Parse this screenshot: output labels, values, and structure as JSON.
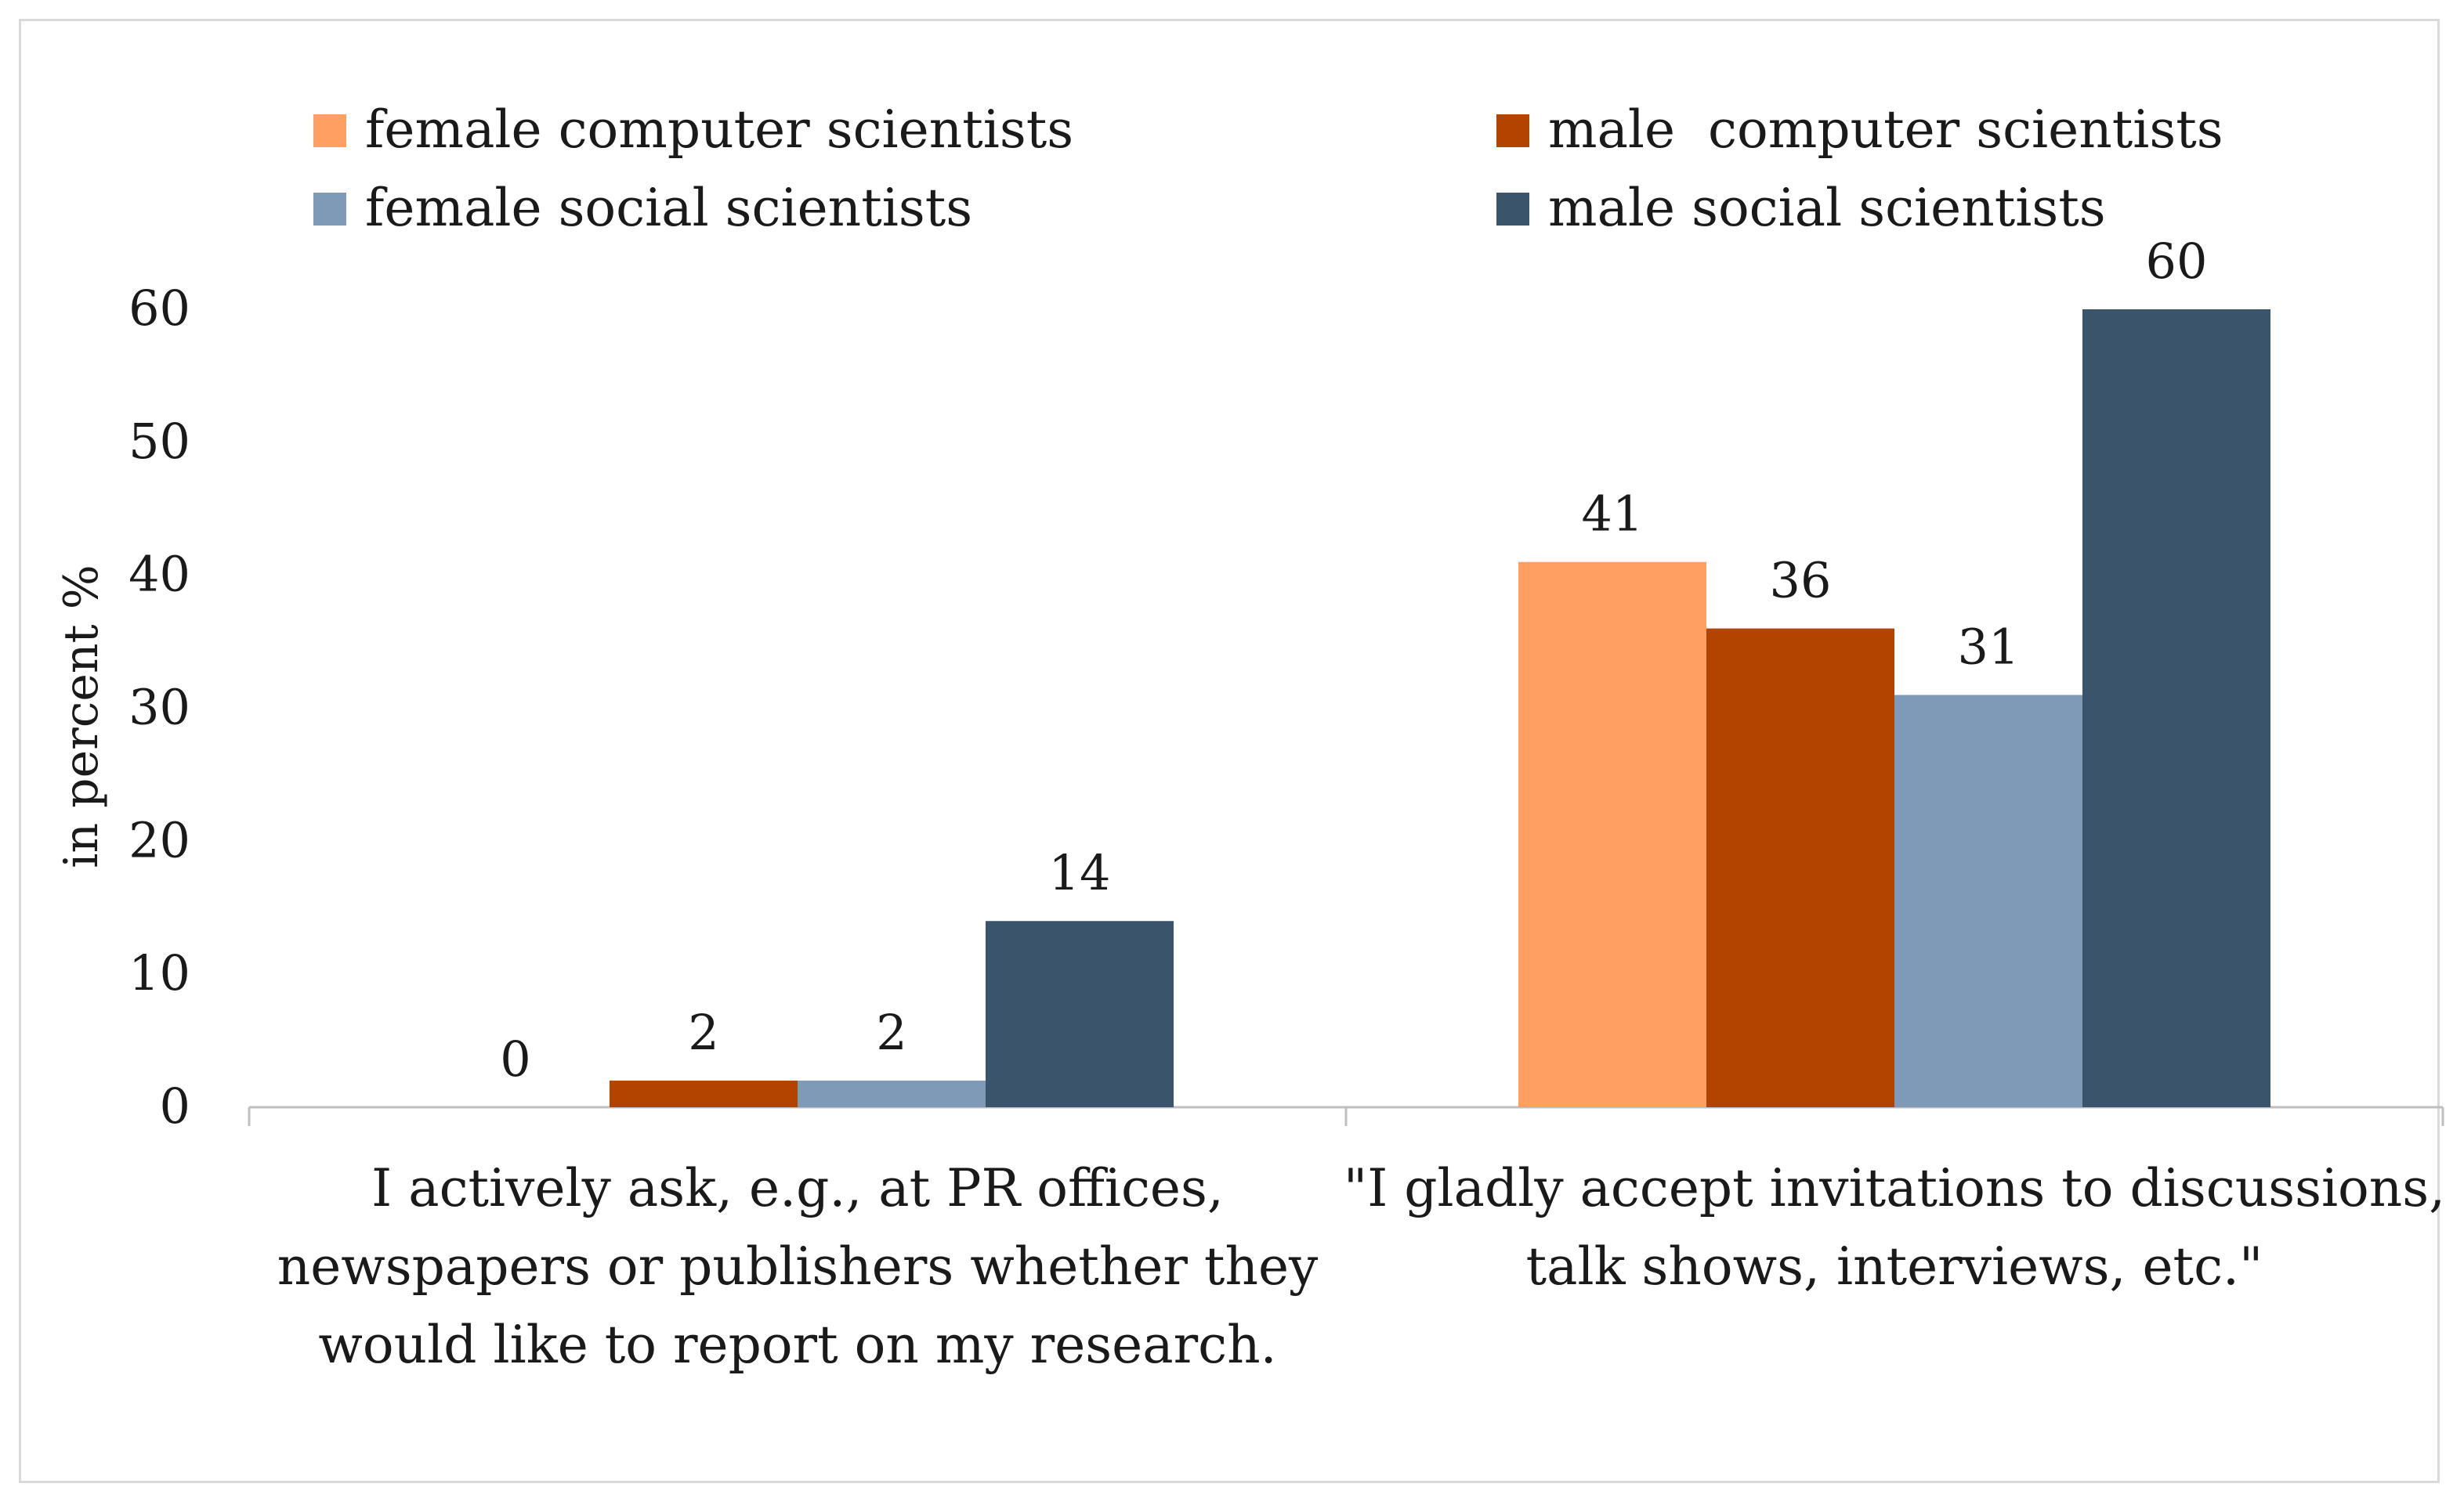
{
  "chart_data": {
    "type": "bar",
    "title": "",
    "xlabel": "",
    "ylabel": "in percent %",
    "ylim": [
      0,
      60
    ],
    "yticks": [
      0,
      10,
      20,
      30,
      40,
      50,
      60
    ],
    "grid": false,
    "legend_position": "top",
    "categories": [
      [
        "I actively ask, e.g., at PR offices,",
        "newspapers or publishers whether they",
        "would like to report on my research."
      ],
      [
        "\"I gladly accept invitations to discussions,",
        "talk shows, interviews, etc.\""
      ]
    ],
    "series": [
      {
        "name": "female computer scientists",
        "color": "#FFA062",
        "values": [
          0,
          41
        ]
      },
      {
        "name": "male  computer scientists",
        "color": "#B34400",
        "values": [
          2,
          36
        ]
      },
      {
        "name": "female social scientists",
        "color": "#7F9AB6",
        "values": [
          2,
          31
        ]
      },
      {
        "name": "male social scientists",
        "color": "#3A546C",
        "values": [
          14,
          60
        ]
      }
    ],
    "data_labels": [
      [
        "0",
        "41"
      ],
      [
        "2",
        "36"
      ],
      [
        "2",
        "31"
      ],
      [
        "14",
        "60"
      ]
    ]
  }
}
